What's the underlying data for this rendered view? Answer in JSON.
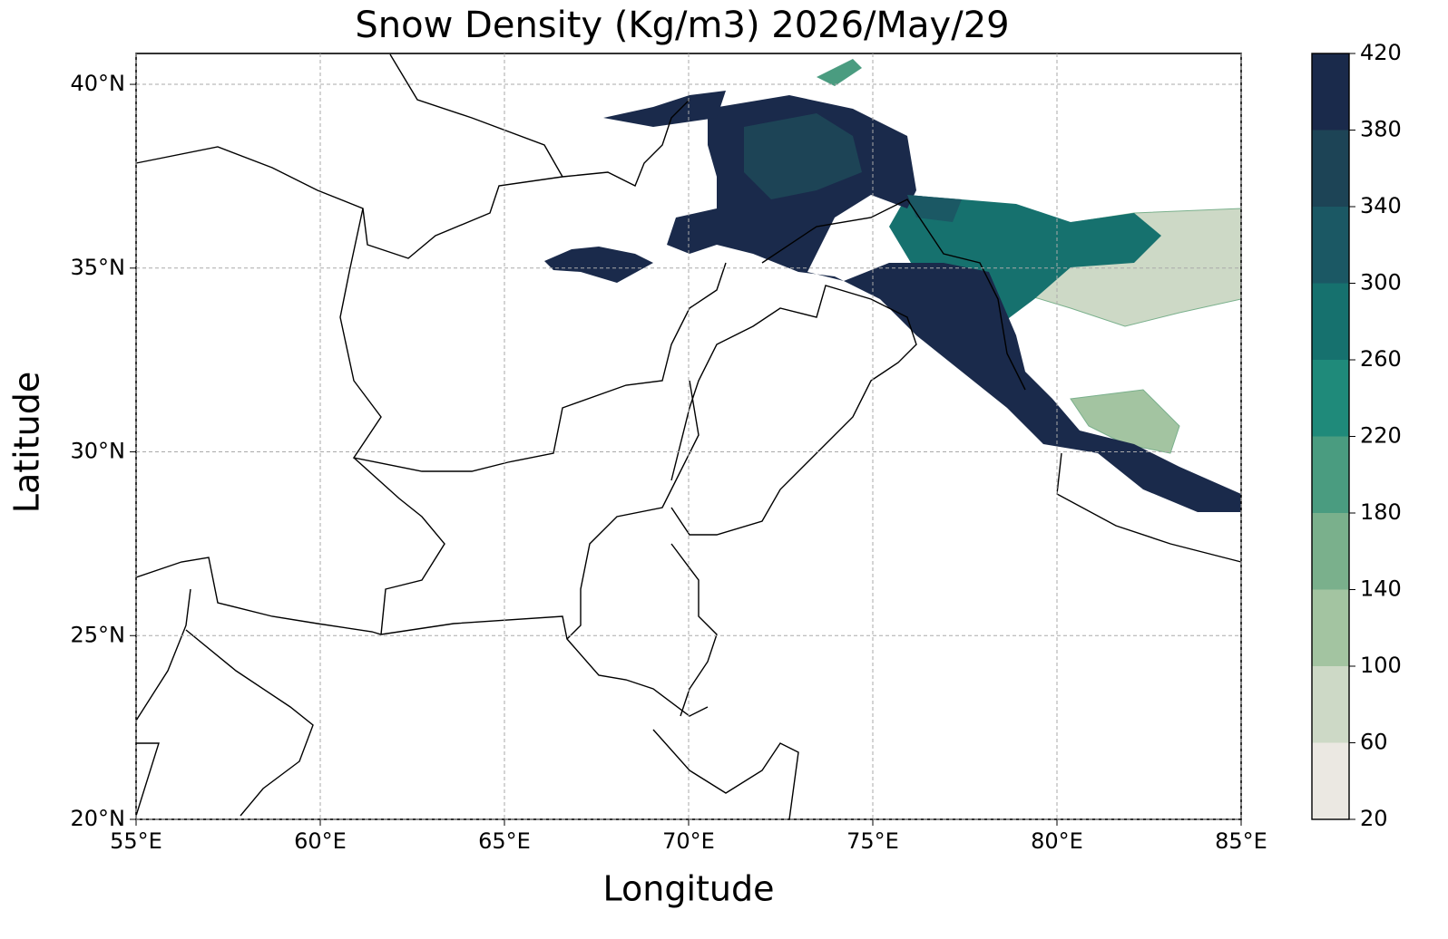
{
  "chart_data": {
    "type": "contour-map",
    "title": "Snow Density (Kg/m3) 2026/May/29",
    "x_label": "Longitude",
    "y_label": "Latitude",
    "xlim": [
      55,
      85
    ],
    "ylim": [
      20,
      40.84
    ],
    "xticks": [
      {
        "value": 55,
        "label": "55°E"
      },
      {
        "value": 60,
        "label": "60°E"
      },
      {
        "value": 65,
        "label": "65°E"
      },
      {
        "value": 70,
        "label": "70°E"
      },
      {
        "value": 75,
        "label": "75°E"
      },
      {
        "value": 80,
        "label": "80°E"
      },
      {
        "value": 85,
        "label": "85°E"
      }
    ],
    "yticks": [
      {
        "value": 20,
        "label": "20°N"
      },
      {
        "value": 25,
        "label": "25°N"
      },
      {
        "value": 30,
        "label": "30°N"
      },
      {
        "value": 35,
        "label": "35°N"
      },
      {
        "value": 40,
        "label": "40°N"
      }
    ],
    "grid": true,
    "colorbar": {
      "levels": [
        20,
        60,
        100,
        140,
        180,
        220,
        260,
        300,
        340,
        380,
        420
      ],
      "colors": [
        "#ebe8e2",
        "#cdd9c6",
        "#a3c4a1",
        "#7ab08c",
        "#4a9c80",
        "#1f8a7a",
        "#16716e",
        "#1b5864",
        "#1d4456",
        "#1a2a4b"
      ]
    }
  }
}
